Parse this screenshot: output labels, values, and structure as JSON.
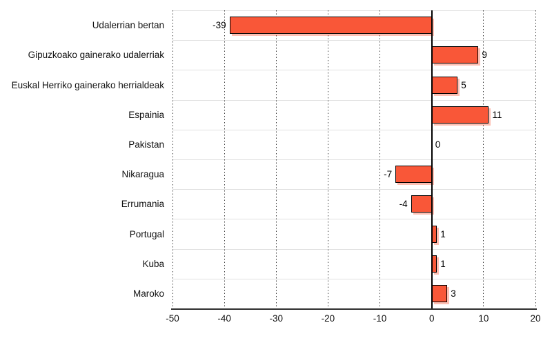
{
  "chart_data": {
    "type": "bar",
    "orientation": "horizontal",
    "categories": [
      "Udalerrian bertan",
      "Gipuzkoako gainerako udalerriak",
      "Euskal Herriko gainerako herrialdeak",
      "Espainia",
      "Pakistan",
      "Nikaragua",
      "Errumania",
      "Portugal",
      "Kuba",
      "Maroko"
    ],
    "values": [
      -39,
      9,
      5,
      11,
      0,
      -7,
      -4,
      1,
      1,
      3
    ],
    "value_labels": [
      "-39",
      "9",
      "5",
      "11",
      "0",
      "-7",
      "-4",
      "1",
      "1",
      "3"
    ],
    "xlim": [
      -50,
      20
    ],
    "xticks": [
      -50,
      -40,
      -30,
      -20,
      -10,
      0,
      10,
      20
    ],
    "xtick_labels": [
      "-50",
      "-40",
      "-30",
      "-20",
      "-10",
      "0",
      "10",
      "20"
    ],
    "grid": "vertical-dotted",
    "legend": "none",
    "xlabel": "",
    "ylabel": ""
  },
  "colors": {
    "bar_fill": "#f95738",
    "bar_border": "#000000",
    "bar_shadow": "rgba(249,87,56,0.38)",
    "gridline": "#3a3a3a",
    "band_separator": "#e0e0e0",
    "axis_line": "#2e2e2e",
    "zero_line": "#000000",
    "text": "#111111",
    "background": "#ffffff"
  }
}
